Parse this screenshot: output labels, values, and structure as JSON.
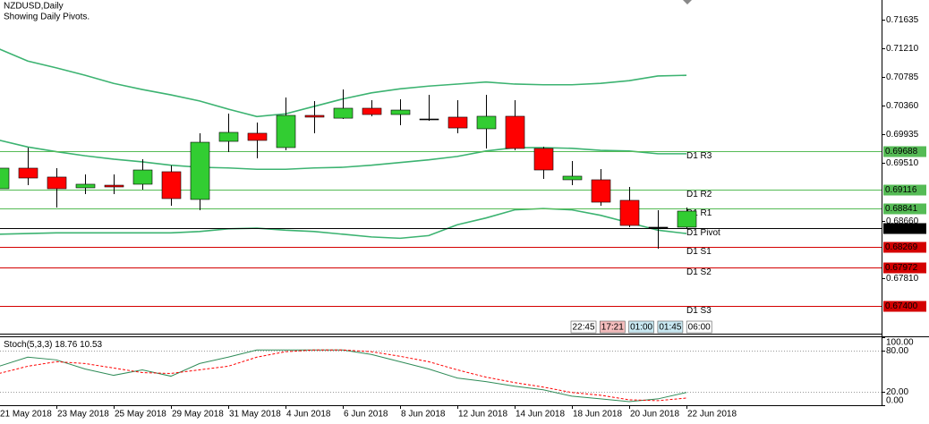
{
  "chart_data": [
    {
      "type": "candlestick",
      "title": "NZDUSD,Daily",
      "subtitle": "Showing Daily Pivots.",
      "categories": [
        "21 May 2018",
        null,
        "23 May 2018",
        null,
        "25 May 2018",
        null,
        "29 May 2018",
        null,
        "31 May 2018",
        null,
        "4 Jun 2018",
        null,
        "6 Jun 2018",
        null,
        "8 Jun 2018",
        null,
        "12 Jun 2018",
        null,
        "14 Jun 2018",
        null,
        "18 Jun 2018",
        null,
        "20 Jun 2018",
        null,
        "22 Jun 2018"
      ],
      "open": [
        0.69133,
        0.69437,
        0.69305,
        0.69146,
        0.69185,
        0.69199,
        0.69384,
        0.68974,
        0.69833,
        0.69953,
        0.69741,
        0.70217,
        0.70176,
        0.70323,
        0.7023,
        0.70164,
        0.70191,
        0.70019,
        0.70204,
        0.69728,
        0.69265,
        0.69265,
        0.68961,
        0.68564,
        0.68564
      ],
      "high": [
        0.69476,
        0.69741,
        0.69437,
        0.69344,
        0.69344,
        0.69569,
        0.69476,
        0.69953,
        0.70243,
        0.70111,
        0.70481,
        0.70429,
        0.706,
        0.70442,
        0.70455,
        0.70521,
        0.70442,
        0.70521,
        0.70442,
        0.69754,
        0.69543,
        0.69424,
        0.69159,
        0.68815,
        0.68855
      ],
      "low": [
        0.69119,
        0.69185,
        0.68855,
        0.69053,
        0.69053,
        0.69119,
        0.68881,
        0.68815,
        0.69675,
        0.69582,
        0.69701,
        0.69953,
        0.70164,
        0.70204,
        0.70071,
        0.70137,
        0.69953,
        0.69728,
        0.69701,
        0.69278,
        0.69185,
        0.68881,
        0.68564,
        0.68247,
        0.68537
      ],
      "close": [
        0.69437,
        0.69291,
        0.69133,
        0.69199,
        0.69159,
        0.6941,
        0.68987,
        0.6982,
        0.69966,
        0.69847,
        0.70217,
        0.70191,
        0.70323,
        0.7023,
        0.70296,
        0.70164,
        0.70031,
        0.70204,
        0.69728,
        0.6941,
        0.69318,
        0.68934,
        0.6859,
        0.68564,
        0.68802
      ],
      "up_color": "#32cd32",
      "down_color": "#ff0000",
      "doji_color": "#000000",
      "bands": [
        {
          "color": "#3cb371",
          "values": [
            0.712,
            0.7102,
            0.7092,
            0.7081,
            0.7069,
            0.706,
            0.7052,
            0.7043,
            0.7031,
            0.702,
            0.7024,
            0.7035,
            0.7046,
            0.7055,
            0.7061,
            0.7065,
            0.7068,
            0.7071,
            0.7068,
            0.7067,
            0.7067,
            0.7069,
            0.7073,
            0.708,
            0.7081
          ]
        },
        {
          "color": "#3cb371",
          "values": [
            0.6985,
            0.6975,
            0.6968,
            0.6962,
            0.6957,
            0.6953,
            0.6948,
            0.6945,
            0.6944,
            0.6942,
            0.6942,
            0.6944,
            0.6945,
            0.6948,
            0.6952,
            0.6956,
            0.6961,
            0.6969,
            0.6974,
            0.6974,
            0.6973,
            0.697,
            0.6969,
            0.6965,
            0.6965
          ]
        },
        {
          "color": "#3cb371",
          "values": [
            0.6846,
            0.6847,
            0.6848,
            0.6848,
            0.6848,
            0.6848,
            0.6848,
            0.685,
            0.6854,
            0.6855,
            0.6852,
            0.685,
            0.6846,
            0.6842,
            0.684,
            0.6844,
            0.686,
            0.687,
            0.6882,
            0.6884,
            0.6882,
            0.6874,
            0.6863,
            0.6852,
            0.6847
          ]
        }
      ],
      "pivots": [
        {
          "name": "D1 R3",
          "value": 0.69688,
          "color": "#55bb55"
        },
        {
          "name": "D1 R2",
          "value": 0.69116,
          "color": "#55bb55"
        },
        {
          "name": "D1 R1",
          "value": 0.68841,
          "color": "#55bb55"
        },
        {
          "name": "D1 Pivot",
          "value": 0.68544,
          "color": "#000000"
        },
        {
          "name": "D1 S1",
          "value": 0.68269,
          "color": "#d40000"
        },
        {
          "name": "D1 S2",
          "value": 0.67972,
          "color": "#d40000"
        },
        {
          "name": "D1 S3",
          "value": 0.674,
          "value_label": "0.67400",
          "color": "#d40000"
        }
      ],
      "ylim": [
        0.6699,
        0.71923
      ],
      "yticks": [
        0.71635,
        {
          "value": 0.7121,
          "label": "0.71210"
        },
        0.70785,
        {
          "value": 0.7036,
          "label": "0.70360"
        },
        0.69935,
        {
          "value": 0.6951,
          "label": "0.69510"
        },
        {
          "value": 0.6866,
          "label": "0.68660"
        },
        {
          "value": 0.6781,
          "label": "0.67810"
        }
      ],
      "time_labels": [
        {
          "text": "22:45",
          "color": "#ffffff"
        },
        {
          "text": "17:21",
          "color": "#f4bcbc"
        },
        {
          "text": "01:00",
          "color": "#c8e8f2"
        },
        {
          "text": "01:45",
          "color": "#c8e8f2"
        },
        {
          "text": "06:00",
          "color": "#ffffff"
        }
      ]
    },
    {
      "type": "line",
      "title": "Stoch(5,3,3)",
      "series": [
        {
          "color": "#2e8b57",
          "values": [
            57.3,
            70.7,
            66.7,
            53.3,
            44,
            52,
            42.7,
            61.3,
            70.7,
            81.3,
            81.3,
            81.3,
            81.3,
            74.7,
            64,
            53.3,
            40,
            34.7,
            28,
            22.7,
            13.3,
            9.3,
            5.3,
            9.3,
            18.76
          ]
        },
        {
          "color": "#ff0000",
          "dash": true,
          "values": [
            46.7,
            57.3,
            64,
            61.3,
            54.7,
            48,
            46.7,
            52,
            57.3,
            70.7,
            78.7,
            81.3,
            81.3,
            78.7,
            72,
            64,
            52,
            41.3,
            33.3,
            26.7,
            18.7,
            14.7,
            8,
            6.7,
            10.53
          ]
        }
      ],
      "ylim": [
        0,
        100
      ],
      "yticks": [
        {
          "value": 100,
          "label": "100.00"
        },
        {
          "value": 80,
          "label": "80.00"
        },
        {
          "value": 20,
          "label": "20.00"
        },
        {
          "value": 0,
          "label": "0.00"
        }
      ]
    }
  ]
}
